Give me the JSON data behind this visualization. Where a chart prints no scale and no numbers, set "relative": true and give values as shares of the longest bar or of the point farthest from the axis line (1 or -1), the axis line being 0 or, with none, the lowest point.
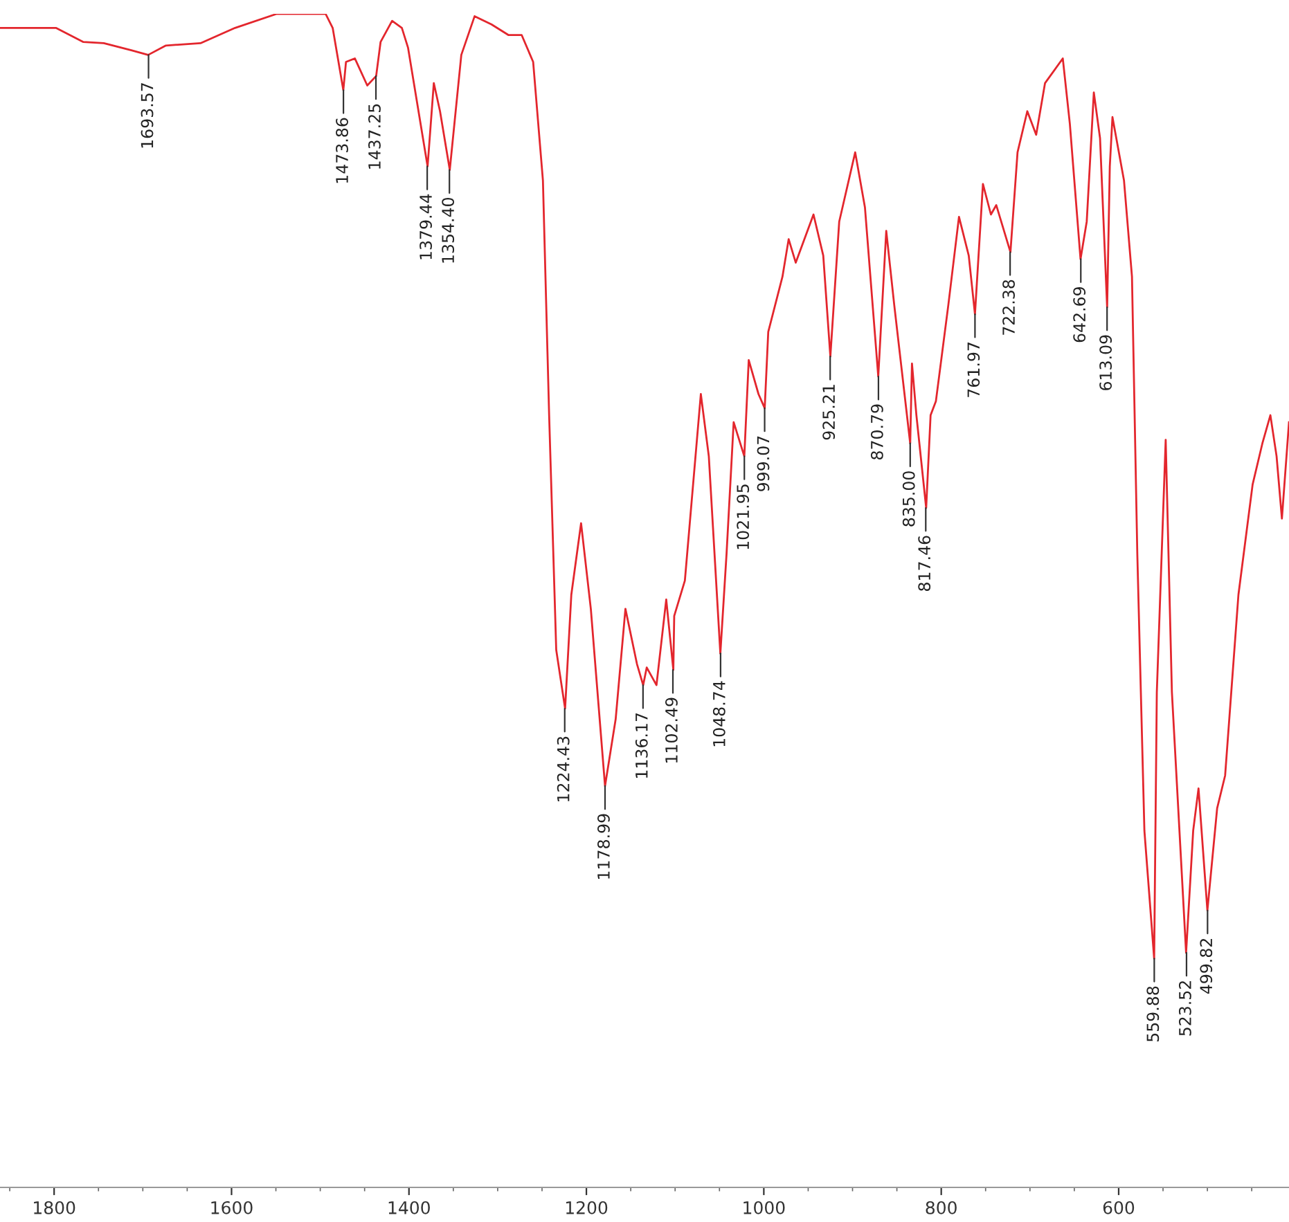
{
  "chart_data": {
    "type": "line",
    "relative": true,
    "xlim": [
      1861,
      408
    ],
    "xticks": [
      1800,
      1600,
      1400,
      1200,
      1000,
      800,
      600
    ],
    "grid": false,
    "marker": "none",
    "line_style": "solid",
    "x": [
      1861,
      1798,
      1767,
      1744,
      1713,
      1694,
      1674,
      1635,
      1596,
      1549,
      1494,
      1486,
      1474,
      1471,
      1461,
      1447,
      1437,
      1432,
      1419,
      1408,
      1401,
      1379,
      1372,
      1365,
      1354,
      1341,
      1326,
      1307,
      1288,
      1273,
      1260,
      1249,
      1242,
      1234,
      1224,
      1217,
      1206,
      1195,
      1179,
      1167,
      1156,
      1143,
      1136,
      1132,
      1121,
      1110,
      1102,
      1101,
      1089,
      1071,
      1062,
      1049,
      1042,
      1034,
      1022,
      1017,
      1006,
      999,
      995,
      979,
      972,
      964,
      944,
      933,
      925,
      915,
      897,
      886,
      871,
      862,
      853,
      835,
      833,
      828,
      817,
      812,
      806,
      792,
      780,
      769,
      762,
      753,
      744,
      738,
      722,
      714,
      703,
      693,
      683,
      663,
      655,
      643,
      636,
      628,
      621,
      613,
      610,
      607,
      594,
      585,
      579,
      571,
      560,
      557,
      547,
      540,
      524,
      516,
      510,
      500,
      489,
      480,
      465,
      449,
      438,
      429,
      422,
      416,
      408
    ],
    "series": [
      {
        "color": "#e3262d",
        "values": [
          0.988,
          0.988,
          0.976,
          0.975,
          0.969,
          0.965,
          0.973,
          0.975,
          0.988,
          1.0,
          1.0,
          0.988,
          0.935,
          0.959,
          0.962,
          0.939,
          0.947,
          0.976,
          0.994,
          0.988,
          0.971,
          0.87,
          0.941,
          0.917,
          0.867,
          0.965,
          0.998,
          0.991,
          0.982,
          0.982,
          0.959,
          0.858,
          0.658,
          0.458,
          0.408,
          0.505,
          0.566,
          0.493,
          0.342,
          0.399,
          0.493,
          0.446,
          0.428,
          0.443,
          0.428,
          0.501,
          0.441,
          0.487,
          0.517,
          0.676,
          0.623,
          0.455,
          0.54,
          0.652,
          0.623,
          0.705,
          0.676,
          0.664,
          0.729,
          0.776,
          0.808,
          0.788,
          0.829,
          0.794,
          0.708,
          0.823,
          0.882,
          0.835,
          0.691,
          0.815,
          0.752,
          0.634,
          0.702,
          0.658,
          0.579,
          0.658,
          0.67,
          0.752,
          0.827,
          0.794,
          0.744,
          0.855,
          0.829,
          0.837,
          0.797,
          0.882,
          0.917,
          0.897,
          0.941,
          0.962,
          0.906,
          0.791,
          0.823,
          0.933,
          0.894,
          0.75,
          0.87,
          0.912,
          0.858,
          0.776,
          0.54,
          0.304,
          0.195,
          0.422,
          0.637,
          0.422,
          0.2,
          0.304,
          0.34,
          0.236,
          0.323,
          0.351,
          0.505,
          0.599,
          0.634,
          0.658,
          0.623,
          0.57,
          0.652
        ]
      }
    ],
    "annotations": [
      {
        "text": "1693.57",
        "x": 1693.57,
        "y": 0.965
      },
      {
        "text": "1473.86",
        "x": 1473.86,
        "y": 0.935
      },
      {
        "text": "1437.25",
        "x": 1437.25,
        "y": 0.947
      },
      {
        "text": "1379.44",
        "x": 1379.44,
        "y": 0.87
      },
      {
        "text": "1354.40",
        "x": 1354.4,
        "y": 0.867
      },
      {
        "text": "1224.43",
        "x": 1224.43,
        "y": 0.408
      },
      {
        "text": "1178.99",
        "x": 1178.99,
        "y": 0.342
      },
      {
        "text": "1136.17",
        "x": 1136.17,
        "y": 0.428
      },
      {
        "text": "1102.49",
        "x": 1102.49,
        "y": 0.441
      },
      {
        "text": "1048.74",
        "x": 1048.74,
        "y": 0.455
      },
      {
        "text": "1021.95",
        "x": 1021.95,
        "y": 0.623
      },
      {
        "text": "999.07",
        "x": 999.07,
        "y": 0.664
      },
      {
        "text": "925.21",
        "x": 925.21,
        "y": 0.708
      },
      {
        "text": "870.79",
        "x": 870.79,
        "y": 0.691
      },
      {
        "text": "835.00",
        "x": 835.0,
        "y": 0.634
      },
      {
        "text": "817.46",
        "x": 817.46,
        "y": 0.579
      },
      {
        "text": "761.97",
        "x": 761.97,
        "y": 0.744
      },
      {
        "text": "722.38",
        "x": 722.38,
        "y": 0.797
      },
      {
        "text": "642.69",
        "x": 642.69,
        "y": 0.791
      },
      {
        "text": "613.09",
        "x": 613.09,
        "y": 0.75
      },
      {
        "text": "559.88",
        "x": 559.88,
        "y": 0.195
      },
      {
        "text": "523.52",
        "x": 523.52,
        "y": 0.2
      },
      {
        "text": "499.82",
        "x": 499.82,
        "y": 0.236
      }
    ]
  }
}
